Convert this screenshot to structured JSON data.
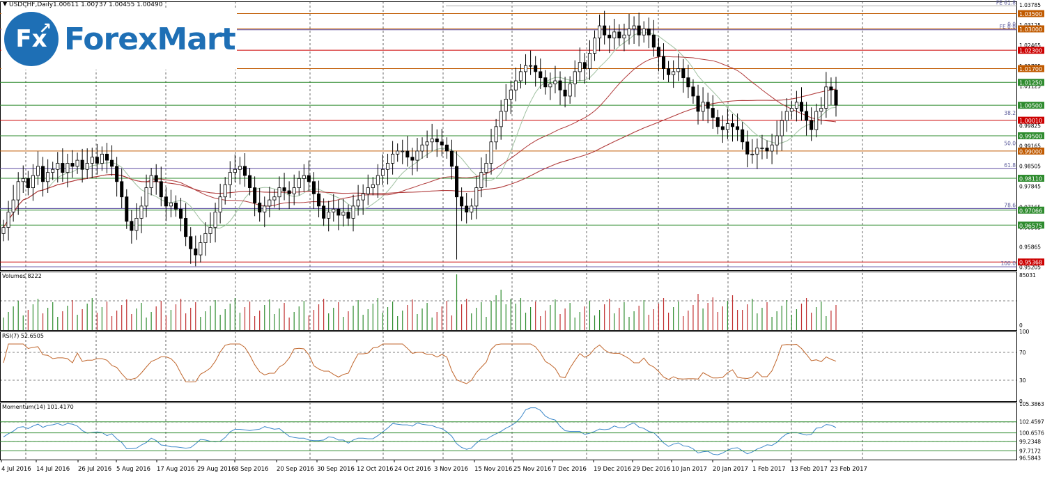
{
  "chart_data": {
    "type": "candlestick",
    "instrument_title": "USDCHF,Daily",
    "ohlc_header": "1.00611 1.00737 1.00455 1.00490",
    "price_axis_ticks": [
      "1.03785",
      "1.03125",
      "1.02465",
      "1.01785",
      "1.01125",
      "0.99825",
      "0.99165",
      "0.98505",
      "0.97845",
      "0.97165",
      "0.96505",
      "0.95865",
      "0.95205"
    ],
    "level_labels": [
      {
        "label": "1.03500",
        "value": 1.035,
        "color": "#c05a00"
      },
      {
        "label": "1.03000",
        "value": 1.03,
        "color": "#c05a00"
      },
      {
        "label": "1.02300",
        "value": 1.023,
        "color": "#cc0000"
      },
      {
        "label": "1.01700",
        "value": 1.017,
        "color": "#c05a00"
      },
      {
        "label": "1.01250",
        "value": 1.0125,
        "color": "#2e8b2e"
      },
      {
        "label": "1.00500",
        "value": 1.005,
        "color": "#2e8b2e"
      },
      {
        "label": "1.00010",
        "value": 1.0001,
        "color": "#cc0000"
      },
      {
        "label": "0.99500",
        "value": 0.995,
        "color": "#2e8b2e"
      },
      {
        "label": "0.99000",
        "value": 0.99,
        "color": "#c05a00"
      },
      {
        "label": "0.98110",
        "value": 0.9811,
        "color": "#2e8b2e"
      },
      {
        "label": "0.97066",
        "value": 0.97066,
        "color": "#2e8b2e"
      },
      {
        "label": "0.96575",
        "value": 0.96575,
        "color": "#2e8b2e"
      },
      {
        "label": "0.95368",
        "value": 0.95368,
        "color": "#cc0000"
      }
    ],
    "fib_labels": [
      {
        "label": "FE 61.8",
        "value": 1.0375
      },
      {
        "label": "0.0",
        "value": 1.0305
      },
      {
        "label": "FE 0.0",
        "value": 1.0297
      },
      {
        "label": "38.2",
        "value": 1.0014
      },
      {
        "label": "50.0",
        "value": 0.9915
      },
      {
        "label": "61.8",
        "value": 0.9843
      },
      {
        "label": "78.6",
        "value": 0.9712
      },
      {
        "label": "100.0",
        "value": 0.9521
      }
    ],
    "date_labels": [
      "4 Jul 2016",
      "14 Jul 2016",
      "26 Jul 2016",
      "5 Aug 2016",
      "17 Aug 2016",
      "29 Aug 2016",
      "8 Sep 2016",
      "20 Sep 2016",
      "30 Sep 2016",
      "12 Oct 2016",
      "24 Oct 2016",
      "3 Nov 2016",
      "15 Nov 2016",
      "25 Nov 2016",
      "7 Dec 2016",
      "19 Dec 2016",
      "29 Dec 2016",
      "10 Jan 2017",
      "20 Jan 2017",
      "1 Feb 2017",
      "13 Feb 2017",
      "23 Feb 2017"
    ],
    "close_path": [
      0.965,
      0.97,
      0.974,
      0.98,
      0.981,
      0.978,
      0.982,
      0.985,
      0.98,
      0.983,
      0.984,
      0.986,
      0.983,
      0.986,
      0.985,
      0.987,
      0.984,
      0.986,
      0.988,
      0.986,
      0.989,
      0.987,
      0.985,
      0.98,
      0.975,
      0.967,
      0.964,
      0.968,
      0.972,
      0.978,
      0.982,
      0.98,
      0.975,
      0.972,
      0.973,
      0.971,
      0.968,
      0.962,
      0.958,
      0.956,
      0.96,
      0.963,
      0.965,
      0.97,
      0.975,
      0.979,
      0.983,
      0.984,
      0.985,
      0.982,
      0.978,
      0.973,
      0.97,
      0.972,
      0.974,
      0.975,
      0.978,
      0.977,
      0.976,
      0.978,
      0.981,
      0.982,
      0.98,
      0.976,
      0.972,
      0.968,
      0.97,
      0.971,
      0.969,
      0.97,
      0.968,
      0.972,
      0.974,
      0.976,
      0.978,
      0.979,
      0.982,
      0.984,
      0.986,
      0.989,
      0.99,
      0.99,
      0.988,
      0.987,
      0.99,
      0.992,
      0.993,
      0.994,
      0.993,
      0.992,
      0.99,
      0.985,
      0.975,
      0.972,
      0.97,
      0.972,
      0.978,
      0.983,
      0.986,
      0.993,
      0.998,
      1.003,
      1.007,
      1.01,
      1.013,
      1.016,
      1.018,
      1.018,
      1.016,
      1.014,
      1.011,
      1.012,
      1.013,
      1.01,
      1.008,
      1.012,
      1.016,
      1.019,
      1.017,
      1.022,
      1.027,
      1.031,
      1.028,
      1.027,
      1.029,
      1.027,
      1.028,
      1.03,
      1.031,
      1.028,
      1.03,
      1.028,
      1.024,
      1.021,
      1.017,
      1.015,
      1.016,
      1.017,
      1.014,
      1.011,
      1.008,
      1.003,
      1.006,
      1.004,
      1.001,
      0.998,
      0.997,
      0.999,
      0.998,
      0.997,
      0.993,
      0.989,
      0.989,
      0.991,
      0.991,
      0.99,
      0.992,
      0.995,
      1.0,
      1.003,
      1.004,
      1.006,
      1.003,
      1.0,
      0.997,
      1.003,
      1.004,
      1.011,
      1.01,
      1.005
    ],
    "series": [
      {
        "name": "USDCHF",
        "color": "#000000"
      },
      {
        "name": "MA fast",
        "color": "#9fc0a0"
      },
      {
        "name": "MA mid",
        "color": "#b03a3a"
      },
      {
        "name": "MA slow",
        "color": "#b03a3a"
      }
    ],
    "panels": [
      {
        "title": "Volumes 8222",
        "axis_ticks": [
          "85031",
          "0"
        ]
      },
      {
        "title": "RSI(7) 52.6505",
        "axis_ticks": [
          "100",
          "70",
          "30",
          "0"
        ]
      },
      {
        "title": "Momentum(14) 101.4170",
        "axis_ticks": [
          "105.3863",
          "102.4597",
          "100.6576",
          "99.2348",
          "97.7172",
          "96.5843"
        ]
      }
    ]
  },
  "branding": {
    "logo_mark": "Fx",
    "logo_text": "ForexMart"
  }
}
